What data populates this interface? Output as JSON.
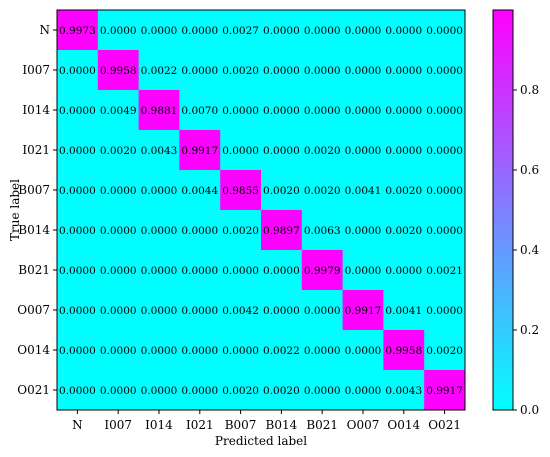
{
  "chart_data": {
    "type": "heatmap",
    "xlabel": "Predicted label",
    "ylabel": "True label",
    "categories_x": [
      "N",
      "I007",
      "I014",
      "I021",
      "B007",
      "B014",
      "B021",
      "O007",
      "O014",
      "O021"
    ],
    "categories_y": [
      "N",
      "I007",
      "I014",
      "I021",
      "B007",
      "B014",
      "B021",
      "O007",
      "O014",
      "O021"
    ],
    "values": [
      [
        "0.9973",
        "0.0000",
        "0.0000",
        "0.0000",
        "0.0027",
        "0.0000",
        "0.0000",
        "0.0000",
        "0.0000",
        "0.0000"
      ],
      [
        "0.0000",
        "0.9958",
        "0.0022",
        "0.0000",
        "0.0020",
        "0.0000",
        "0.0000",
        "0.0000",
        "0.0000",
        "0.0000"
      ],
      [
        "0.0000",
        "0.0049",
        "0.9881",
        "0.0070",
        "0.0000",
        "0.0000",
        "0.0000",
        "0.0000",
        "0.0000",
        "0.0000"
      ],
      [
        "0.0000",
        "0.0020",
        "0.0043",
        "0.9917",
        "0.0000",
        "0.0000",
        "0.0020",
        "0.0000",
        "0.0000",
        "0.0000"
      ],
      [
        "0.0000",
        "0.0000",
        "0.0000",
        "0.0044",
        "0.9855",
        "0.0020",
        "0.0020",
        "0.0041",
        "0.0020",
        "0.0000"
      ],
      [
        "0.0000",
        "0.0000",
        "0.0000",
        "0.0000",
        "0.0020",
        "0.9897",
        "0.0063",
        "0.0000",
        "0.0020",
        "0.0000"
      ],
      [
        "0.0000",
        "0.0000",
        "0.0000",
        "0.0000",
        "0.0000",
        "0.0000",
        "0.9979",
        "0.0000",
        "0.0000",
        "0.0021"
      ],
      [
        "0.0000",
        "0.0000",
        "0.0000",
        "0.0000",
        "0.0042",
        "0.0000",
        "0.0000",
        "0.9917",
        "0.0041",
        "0.0000"
      ],
      [
        "0.0000",
        "0.0000",
        "0.0000",
        "0.0000",
        "0.0000",
        "0.0022",
        "0.0000",
        "0.0000",
        "0.9958",
        "0.0020"
      ],
      [
        "0.0000",
        "0.0000",
        "0.0000",
        "0.0000",
        "0.0020",
        "0.0020",
        "0.0000",
        "0.0000",
        "0.0043",
        "0.9917"
      ]
    ],
    "colormap": {
      "low": "#00ffff",
      "high": "#ff00ff"
    },
    "colorbar": {
      "range": [
        0,
        1
      ],
      "ticks": [
        "0.0",
        "0.2",
        "0.4",
        "0.6",
        "0.8"
      ]
    }
  }
}
